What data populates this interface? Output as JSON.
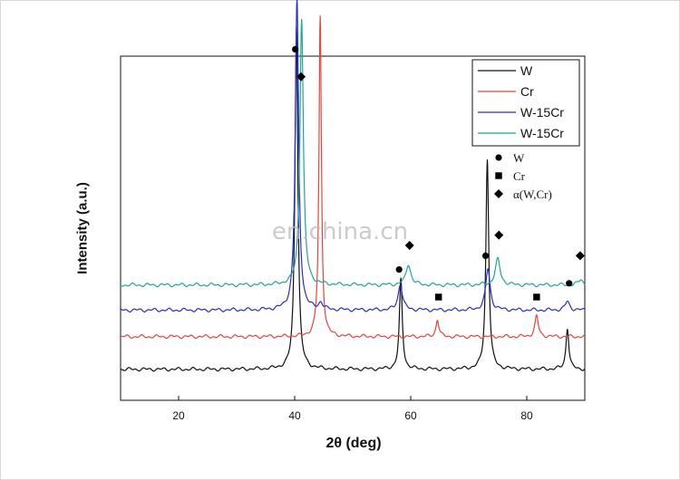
{
  "watermark": "en.china.cn",
  "chart_data": {
    "type": "line",
    "xlabel": "2θ (deg)",
    "ylabel": "Intensity (a.u.)",
    "xlim": [
      10,
      90
    ],
    "xticks": [
      20,
      40,
      60,
      80
    ],
    "grid": false,
    "legend": {
      "placement": "top-right",
      "lines": [
        {
          "name": "W",
          "color": "#111111"
        },
        {
          "name": "Cr",
          "color": "#e8443a"
        },
        {
          "name": "W-15Cr",
          "color": "#2b2bd6"
        },
        {
          "name": "W-15Cr",
          "color": "#19a899"
        }
      ],
      "symbols": [
        {
          "shape": "circle",
          "label": "W"
        },
        {
          "shape": "square",
          "label": "Cr"
        },
        {
          "shape": "diamond",
          "label": "α(W,Cr)"
        }
      ]
    },
    "series": [
      {
        "name": "W",
        "color": "#111111",
        "baseline": 0.09,
        "peaks": [
          {
            "x": 40.3,
            "h": 1.0,
            "w": 0.3
          },
          {
            "x": 58.3,
            "h": 0.26,
            "w": 0.3
          },
          {
            "x": 73.2,
            "h": 0.61,
            "w": 0.3
          },
          {
            "x": 87.0,
            "h": 0.12,
            "w": 0.3
          }
        ]
      },
      {
        "name": "Cr",
        "color": "#e8443a",
        "baseline": 0.185,
        "peaks": [
          {
            "x": 44.4,
            "h": 0.93,
            "w": 0.25
          },
          {
            "x": 64.6,
            "h": 0.05,
            "w": 0.3
          },
          {
            "x": 81.7,
            "h": 0.06,
            "w": 0.35
          }
        ]
      },
      {
        "name": "W-15Cr",
        "color": "#2b2bd6",
        "baseline": 0.262,
        "peaks": [
          {
            "x": 40.4,
            "h": 0.9,
            "w": 0.35
          },
          {
            "x": 44.5,
            "h": 0.02,
            "w": 0.4
          },
          {
            "x": 58.2,
            "h": 0.075,
            "w": 0.45
          },
          {
            "x": 73.3,
            "h": 0.12,
            "w": 0.45
          },
          {
            "x": 87.0,
            "h": 0.025,
            "w": 0.45
          }
        ]
      },
      {
        "name": "W-15Cr",
        "color": "#19a899",
        "baseline": 0.335,
        "peaks": [
          {
            "x": 41.2,
            "h": 0.775,
            "w": 0.35
          },
          {
            "x": 59.6,
            "h": 0.06,
            "w": 0.5
          },
          {
            "x": 75.0,
            "h": 0.075,
            "w": 0.5
          },
          {
            "x": 89.3,
            "h": 0.015,
            "w": 0.5
          }
        ]
      }
    ],
    "markers": [
      {
        "shape": "circle",
        "x": 40.1,
        "y": 1.02
      },
      {
        "shape": "diamond",
        "x": 41.1,
        "y": 0.94
      },
      {
        "shape": "diamond",
        "x": 59.8,
        "y": 0.45
      },
      {
        "shape": "circle",
        "x": 58.0,
        "y": 0.38
      },
      {
        "shape": "square",
        "x": 64.8,
        "y": 0.3
      },
      {
        "shape": "circle",
        "x": 72.9,
        "y": 0.42
      },
      {
        "shape": "diamond",
        "x": 75.2,
        "y": 0.48
      },
      {
        "shape": "square",
        "x": 81.7,
        "y": 0.3
      },
      {
        "shape": "circle",
        "x": 87.3,
        "y": 0.34
      },
      {
        "shape": "diamond",
        "x": 89.2,
        "y": 0.42
      }
    ]
  }
}
